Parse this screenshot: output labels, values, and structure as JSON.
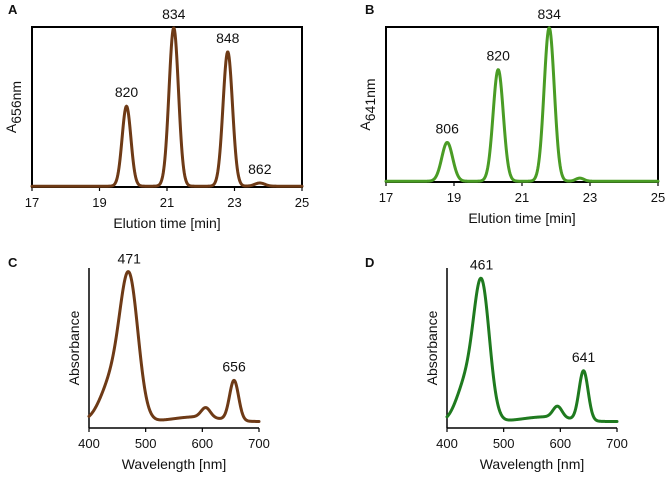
{
  "colors": {
    "brown": "#6e3a16",
    "green_light": "#4a9c25",
    "green_dark": "#1f7a1f"
  },
  "chart_data": [
    {
      "panel": "A",
      "type": "line",
      "xlabel": "Elution time [min]",
      "ylabel_main": "A",
      "ylabel_sub": "656nm",
      "xlim": [
        17,
        25
      ],
      "ylim": [
        0,
        100
      ],
      "xticks": [
        "17",
        "19",
        "21",
        "23",
        "25"
      ],
      "color": "#6e3a16",
      "frame": "box",
      "baseline": 0.5,
      "peaks": [
        {
          "x": 19.8,
          "height": 50,
          "width": 0.13,
          "label": "820"
        },
        {
          "x": 21.2,
          "height": 99,
          "width": 0.14,
          "label": "834"
        },
        {
          "x": 22.8,
          "height": 84,
          "width": 0.14,
          "label": "848"
        },
        {
          "x": 23.75,
          "height": 2,
          "width": 0.15,
          "label": "862"
        }
      ]
    },
    {
      "panel": "B",
      "type": "line",
      "xlabel": "Elution time [min]",
      "ylabel_main": "A",
      "ylabel_sub": "641nm",
      "xlim": [
        17,
        25
      ],
      "ylim": [
        0,
        100
      ],
      "xticks": [
        "17",
        "19",
        "21",
        "23",
        "25"
      ],
      "color": "#4a9c25",
      "frame": "box",
      "baseline": 0.5,
      "peaks": [
        {
          "x": 18.8,
          "height": 25,
          "width": 0.16,
          "label": "806"
        },
        {
          "x": 20.3,
          "height": 72,
          "width": 0.15,
          "label": "820"
        },
        {
          "x": 21.8,
          "height": 99,
          "width": 0.15,
          "label": "834"
        },
        {
          "x": 22.7,
          "height": 2,
          "width": 0.12,
          "label": ""
        }
      ]
    },
    {
      "panel": "C",
      "type": "line",
      "xlabel": "Wavelength [nm]",
      "ylabel_main": "Absorbance",
      "ylabel_sub": "",
      "xlim": [
        400,
        700
      ],
      "ylim": [
        0,
        100
      ],
      "xticks": [
        "400",
        "500",
        "600",
        "700"
      ],
      "color": "#6e3a16",
      "frame": "axes",
      "baseline": 4,
      "peaks": [
        {
          "x": 471,
          "height": 86,
          "width": 16,
          "label": "471"
        },
        {
          "x": 440,
          "height": 24,
          "width": 20,
          "label": ""
        },
        {
          "x": 590,
          "height": 3,
          "width": 40,
          "label": ""
        },
        {
          "x": 606,
          "height": 6,
          "width": 8,
          "label": ""
        },
        {
          "x": 656,
          "height": 25,
          "width": 8,
          "label": "656"
        }
      ]
    },
    {
      "panel": "D",
      "type": "line",
      "xlabel": "Wavelength [nm]",
      "ylabel_main": "Absorbance",
      "ylabel_sub": "",
      "xlim": [
        400,
        700
      ],
      "ylim": [
        0,
        100
      ],
      "xticks": [
        "400",
        "500",
        "600",
        "700"
      ],
      "color": "#1f7a1f",
      "frame": "axes",
      "baseline": 4,
      "peaks": [
        {
          "x": 461,
          "height": 85,
          "width": 14,
          "label": "461"
        },
        {
          "x": 432,
          "height": 22,
          "width": 16,
          "label": ""
        },
        {
          "x": 575,
          "height": 3,
          "width": 40,
          "label": ""
        },
        {
          "x": 595,
          "height": 7,
          "width": 8,
          "label": ""
        },
        {
          "x": 641,
          "height": 31,
          "width": 8,
          "label": "641"
        }
      ]
    }
  ]
}
